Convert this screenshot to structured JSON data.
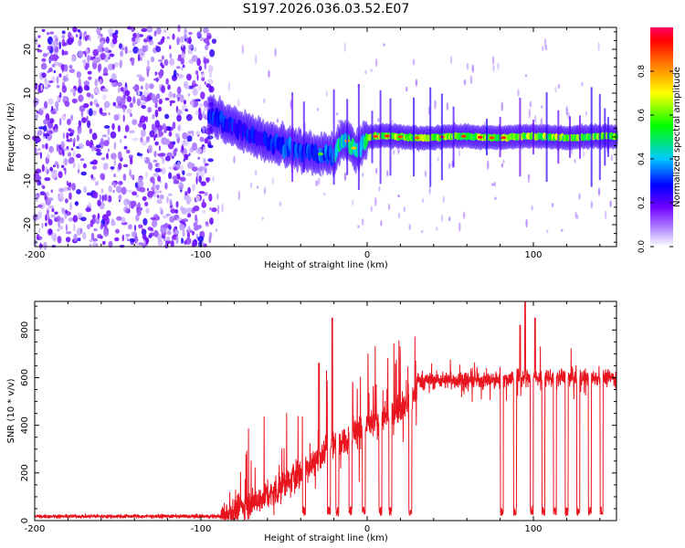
{
  "title": "S197.2026.036.03.52.E07",
  "chart_data": [
    {
      "type": "heatmap",
      "xlabel": "Height of straight line (km)",
      "ylabel": "Frequency (Hz)",
      "xlim": [
        -200,
        150
      ],
      "ylim": [
        -25,
        25
      ],
      "xticks": [
        -200,
        -100,
        0,
        100
      ],
      "yticks": [
        -20,
        -10,
        0,
        10,
        20
      ],
      "colorbar": {
        "label": "Normalized spectral amplitude",
        "range": [
          0,
          1
        ],
        "ticks": [
          0.0,
          0.2,
          0.4,
          0.6,
          0.8
        ],
        "tick_labels": [
          "0.0",
          "0.2",
          "0.4",
          "0.6",
          "0.8"
        ],
        "colormap": [
          "#ffffff",
          "#6e00ff",
          "#0000ff",
          "#00c8ff",
          "#00ff00",
          "#ffff00",
          "#ff8800",
          "#ff0000",
          "#ff0066"
        ]
      },
      "description_regions": [
        {
          "x_range": [
            -200,
            -95
          ],
          "freq_range": [
            -25,
            25
          ],
          "amplitude": 0.1
        },
        {
          "x_range": [
            -95,
            -20
          ],
          "freq_center_start": 5,
          "freq_center_end": -4,
          "amplitude": 0.4
        },
        {
          "x_range": [
            -20,
            150
          ],
          "freq_center": 0,
          "amplitude": 0.8
        }
      ]
    },
    {
      "type": "line",
      "xlabel": "Height of straight line (km)",
      "ylabel": "SNR (10 * v/v)",
      "xlim": [
        -200,
        150
      ],
      "ylim": [
        0,
        920
      ],
      "xticks": [
        -200,
        -100,
        0,
        100
      ],
      "yticks": [
        0,
        200,
        400,
        600,
        800
      ],
      "color": "#e8141e",
      "baseline_segments": [
        {
          "x": [
            -200,
            -88
          ],
          "snr": 18
        },
        {
          "x": [
            -88,
            -55
          ],
          "snr_start": 20,
          "snr_end": 120
        },
        {
          "x": [
            -55,
            -20
          ],
          "snr_start": 120,
          "snr_end": 320
        },
        {
          "x": [
            -20,
            15
          ],
          "snr_start": 320,
          "snr_end": 450
        },
        {
          "x": [
            15,
            30
          ],
          "snr_start": 450,
          "snr_end": 520
        },
        {
          "x": [
            30,
            85
          ],
          "snr": 590
        },
        {
          "x": [
            85,
            150
          ],
          "snr": 600
        }
      ],
      "spikes": [
        {
          "x": -21,
          "snr": 850
        },
        {
          "x": -29,
          "snr": 660
        },
        {
          "x": 92,
          "snr": 820
        },
        {
          "x": 95,
          "snr": 920
        },
        {
          "x": 101,
          "snr": 850
        }
      ],
      "dropouts": [
        -38,
        -23,
        -18,
        -10,
        -2,
        8,
        14,
        26,
        81,
        89,
        99,
        106,
        113,
        120,
        127,
        134,
        141
      ]
    }
  ]
}
